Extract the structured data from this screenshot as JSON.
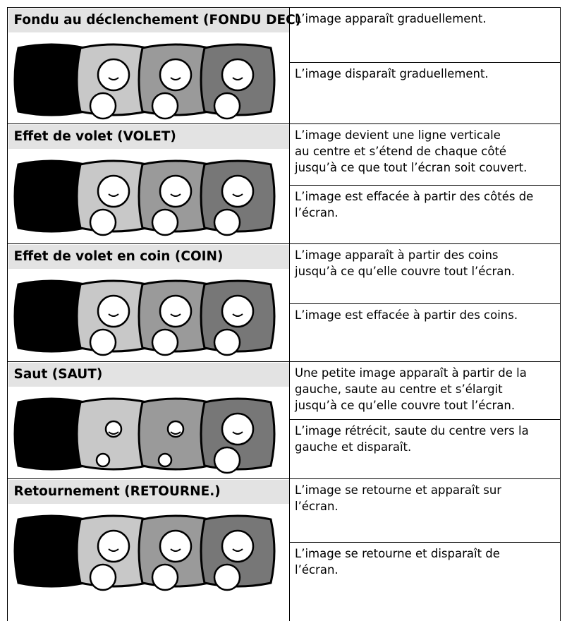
{
  "rows": [
    {
      "title": "Fondu au déclenchement (FONDU DEC)",
      "descriptions": [
        [
          "L’image apparaît graduellement."
        ],
        [
          "L’image disparaît graduellement."
        ]
      ]
    },
    {
      "title": "Effet de volet (VOLET)",
      "descriptions": [
        [
          "L’image devient une ligne verticale",
          "au centre et s’étend de chaque côté",
          "jusqu’à ce que tout l’écran soit couvert."
        ],
        [
          "L’image est effacée à partir des côtés de",
          "l’écran."
        ]
      ]
    },
    {
      "title": "Effet de volet en coin (COIN)",
      "descriptions": [
        [
          "L’image apparaît à partir des coins",
          "jusqu’à ce qu’elle couvre tout l’écran."
        ],
        [
          "L’image est effacée à partir des coins."
        ]
      ]
    },
    {
      "title": "Saut (SAUT)",
      "descriptions": [
        [
          "Une petite image apparaît à partir de la",
          "gauche, saute au centre et s’élargit",
          "jusqu’à ce qu’elle couvre tout l’écran."
        ],
        [
          "L’image rétrécit, saute du centre vers la",
          "gauche et disparaît."
        ]
      ]
    },
    {
      "title": "Retournement (RETOURNE.)",
      "descriptions": [
        [
          "L’image se retourne et apparaît sur",
          "l’écran."
        ],
        [
          "L’image se retourne et disparaît de",
          "l’écran."
        ]
      ]
    }
  ]
}
